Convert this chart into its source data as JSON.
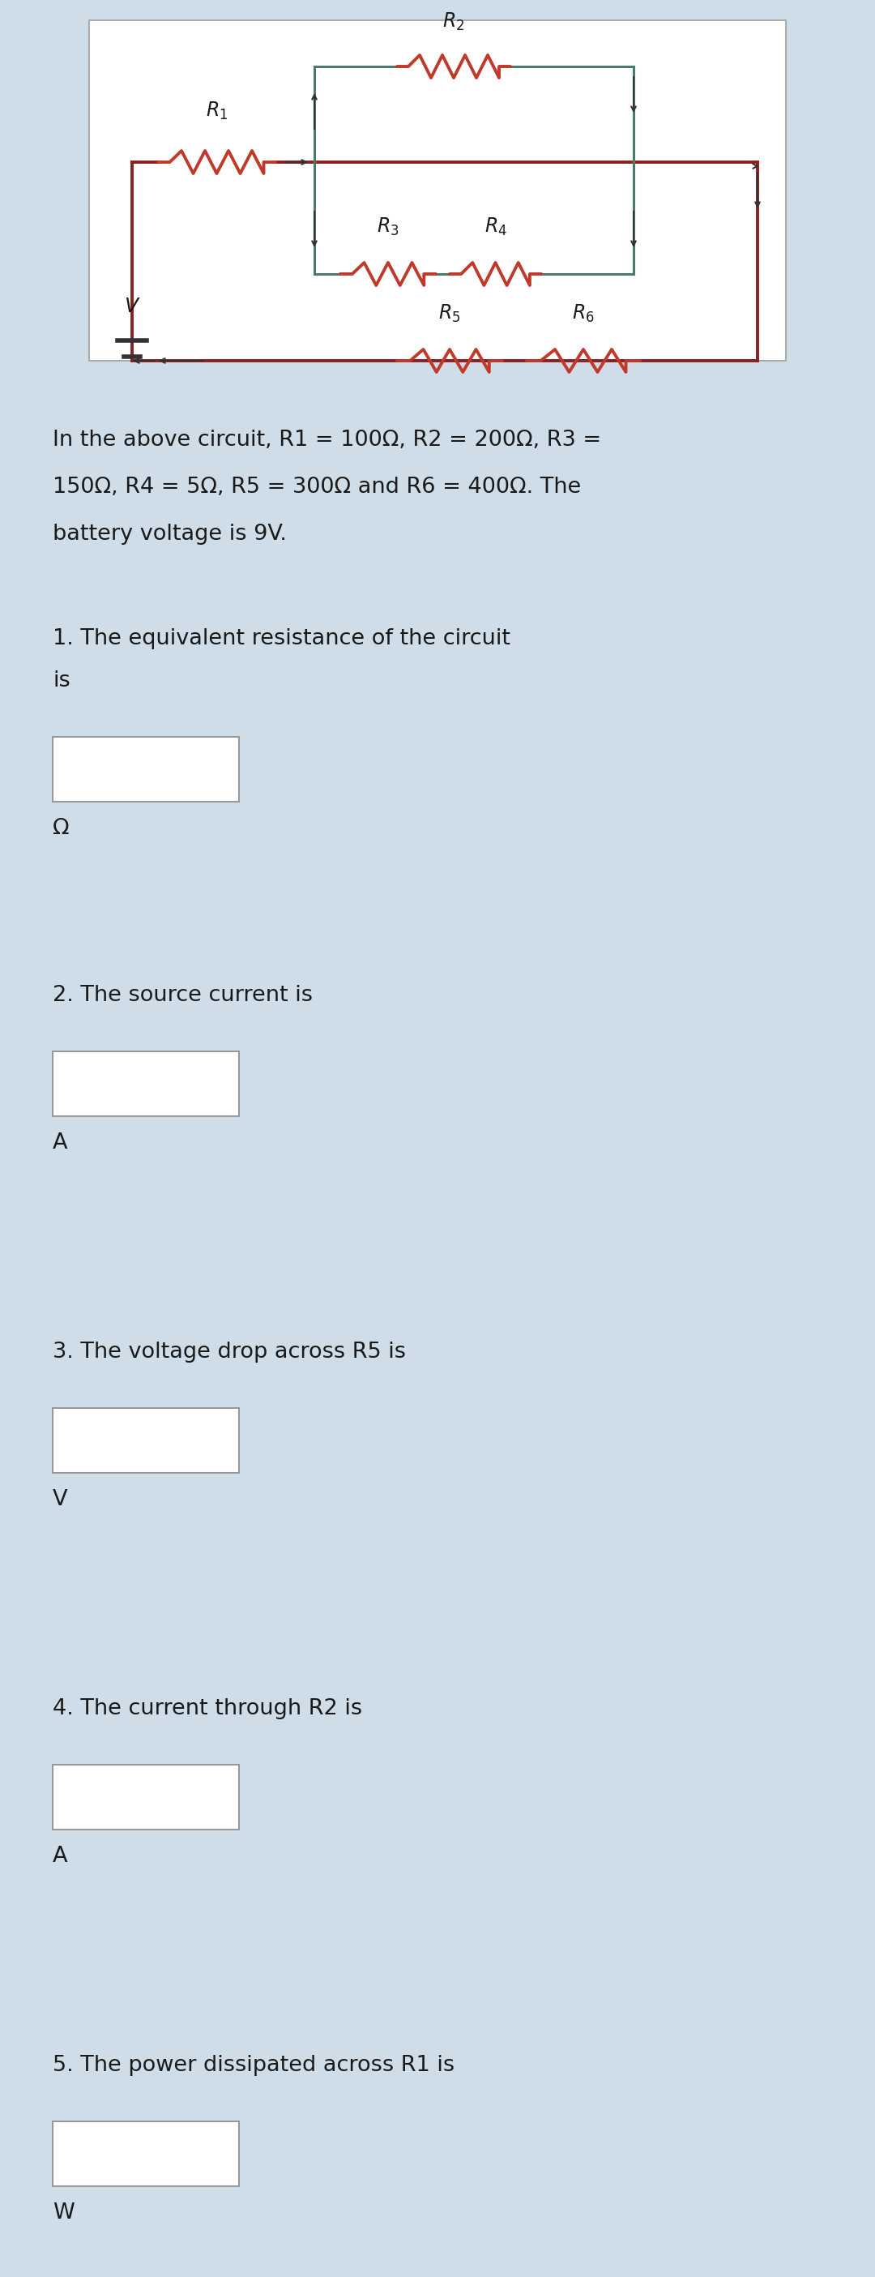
{
  "bg_color": "#cfdde8",
  "circuit_bg": "#ffffff",
  "wire_color_outer": "#8b2020",
  "wire_color_inner": "#4a7c6a",
  "resistor_color": "#c0392b",
  "label_color": "#1a1a1a",
  "desc_line1": "In the above circuit, R1 = 100Ω, R2 = 200Ω, R3 =",
  "desc_line2": "150Ω, R4 = 5Ω, R5 = 300Ω and R6 = 400Ω. The",
  "desc_line3": "battery voltage is 9V.",
  "questions": [
    "1. The equivalent resistance of the circuit\nis",
    "2. The source current is",
    "3. The voltage drop across R5 is",
    "4. The current through R2 is",
    "5. The power dissipated across R1 is"
  ],
  "units": [
    "Ω",
    "A",
    "V",
    "A",
    "W"
  ]
}
